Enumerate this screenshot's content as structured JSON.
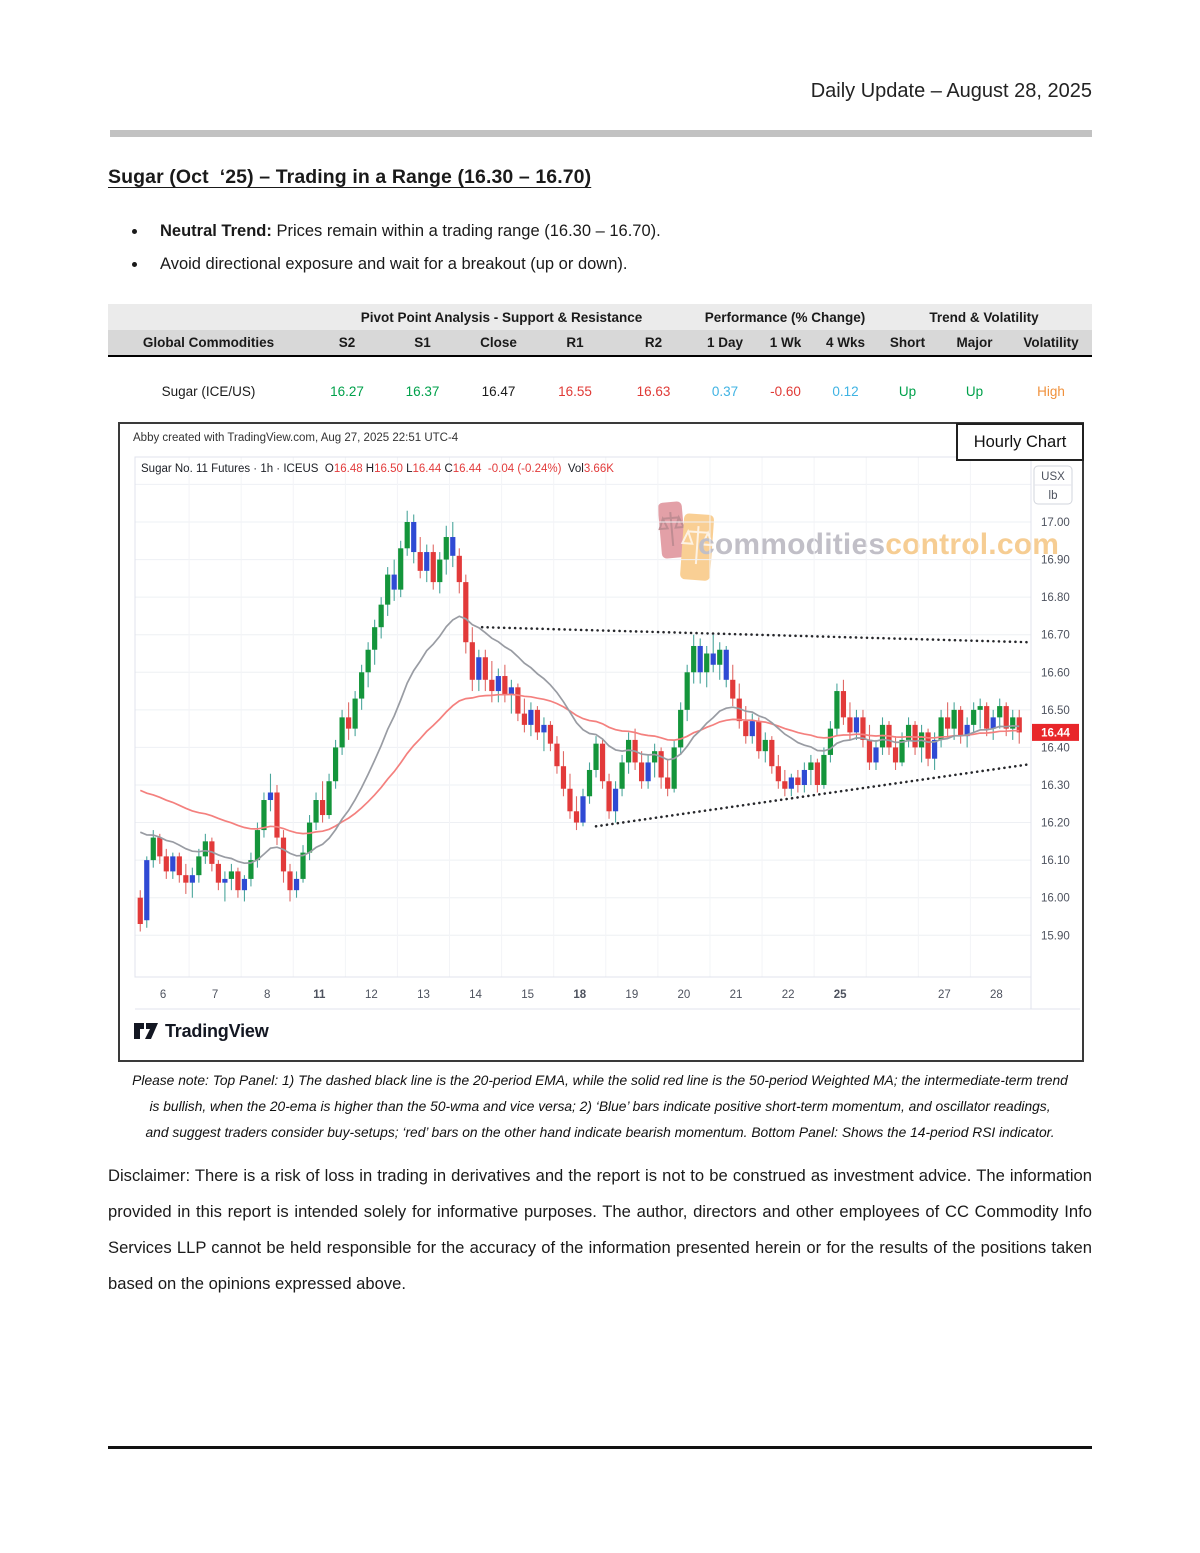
{
  "page": {
    "header_date": "Daily Update – August 28, 2025"
  },
  "section": {
    "title": "Sugar (Oct  ‘25) – Trading in a Range (16.30 – 16.70)",
    "bullets": [
      {
        "bold": "Neutral Trend:",
        "text": " Prices remain within a trading range (16.30 – 16.70)."
      },
      {
        "bold": "",
        "text": "Avoid directional exposure and wait for a breakout (up or down)."
      }
    ]
  },
  "table": {
    "groups": {
      "pivot": "Pivot Point Analysis - Support & Resistance",
      "perf": "Performance (% Change)",
      "trend": "Trend & Volatility"
    },
    "columns": [
      "Global Commodities",
      "S2",
      "S1",
      "Close",
      "R1",
      "R2",
      "1 Day",
      "1 Wk",
      "4 Wks",
      "Short",
      "Major",
      "Volatility"
    ],
    "row": {
      "cells": [
        {
          "v": "Sugar (ICE/US)",
          "color": "#1a1a1a",
          "align": "left"
        },
        {
          "v": "16.27",
          "color": "#00a14b"
        },
        {
          "v": "16.37",
          "color": "#00a14b"
        },
        {
          "v": "16.47",
          "color": "#1a1a1a"
        },
        {
          "v": "16.55",
          "color": "#e03a36"
        },
        {
          "v": "16.63",
          "color": "#e03a36"
        },
        {
          "v": "0.37",
          "color": "#3fb3e3"
        },
        {
          "v": "-0.60",
          "color": "#e03a36"
        },
        {
          "v": "0.12",
          "color": "#3fb3e3"
        },
        {
          "v": "Up",
          "color": "#00a14b"
        },
        {
          "v": "Up",
          "color": "#00a14b"
        },
        {
          "v": "High",
          "color": "#f0913c"
        }
      ]
    }
  },
  "chart": {
    "attribution": "Abby created with TradingView.com, Aug 27, 2025 22:51 UTC-4",
    "overlay_label": "Hourly Chart",
    "legend_parts": [
      [
        "Sugar No. 11 Futures · 1h · ICEUS",
        "d"
      ],
      [
        "  O",
        "d"
      ],
      [
        "16.48",
        "r"
      ],
      [
        " H",
        "d"
      ],
      [
        "16.50",
        "r"
      ],
      [
        " L",
        "d"
      ],
      [
        "16.44",
        "r"
      ],
      [
        " C",
        "d"
      ],
      [
        "16.44",
        "r"
      ],
      [
        "  -0.04 (-0.24%)",
        "r"
      ],
      [
        "  Vol",
        "d"
      ],
      [
        "3.66K",
        "r"
      ]
    ],
    "unit_top": "USX",
    "unit_bottom": "lb",
    "watermark_gray": "commodities",
    "watermark_orange": "control.com",
    "tv_logo_text": "TradingView"
  },
  "chart_data": {
    "type": "candlestick",
    "title": "Sugar No. 11 Futures · 1h · ICEUS",
    "ylim": [
      15.79,
      17.17
    ],
    "y_ticks": [
      "17.00",
      "16.90",
      "16.80",
      "16.70",
      "16.60",
      "16.50",
      "16.40",
      "16.30",
      "16.20",
      "16.10",
      "16.00",
      "15.90"
    ],
    "x_labels": [
      "6",
      "7",
      "8",
      "11",
      "12",
      "13",
      "14",
      "15",
      "18",
      "19",
      "20",
      "21",
      "22",
      "25",
      "",
      "27",
      "28"
    ],
    "bold_x_labels": [
      "11",
      "18",
      "25"
    ],
    "bars_per_day": 8,
    "last_price": "16.44",
    "ema20_seed": 16.2,
    "wma50_seed": 16.3,
    "trendlines": [
      {
        "i1": 52.5,
        "p1": 16.72,
        "i2": 136.5,
        "p2": 16.68
      },
      {
        "i1": 70.0,
        "p1": 16.19,
        "i2": 136.5,
        "p2": 16.355
      }
    ],
    "colors": {
      "up": "#14953b",
      "down": "#e23a3a",
      "momo": "#2f4ad4",
      "wick_up": "#4ba69c",
      "wick_down": "#e06a66",
      "ema20": "#999ca3",
      "wma50": "#f4807e",
      "trendline": "#26272b",
      "grid": "#eef0f4",
      "grid_v": "#f3f4f7",
      "pane_border": "#e0e3ec",
      "axis_text": "#4d525e",
      "badge_bg": "#e8262a",
      "badge_text": "#ffffff"
    },
    "candles": [
      [
        16.0,
        16.02,
        15.91,
        15.93,
        "r"
      ],
      [
        15.94,
        16.11,
        15.92,
        16.1,
        "b"
      ],
      [
        16.1,
        16.18,
        16.08,
        16.16,
        "g"
      ],
      [
        16.16,
        16.17,
        16.09,
        16.11,
        "r"
      ],
      [
        16.11,
        16.13,
        16.05,
        16.07,
        "r"
      ],
      [
        16.07,
        16.12,
        16.05,
        16.11,
        "b"
      ],
      [
        16.11,
        16.12,
        16.04,
        16.06,
        "r"
      ],
      [
        16.06,
        16.09,
        16.01,
        16.04,
        "r"
      ],
      [
        16.04,
        16.08,
        16.0,
        16.06,
        "b"
      ],
      [
        16.06,
        16.13,
        16.04,
        16.11,
        "g"
      ],
      [
        16.11,
        16.17,
        16.09,
        16.15,
        "g"
      ],
      [
        16.15,
        16.16,
        16.07,
        16.09,
        "r"
      ],
      [
        16.09,
        16.1,
        16.02,
        16.04,
        "r"
      ],
      [
        16.04,
        16.07,
        15.99,
        16.05,
        "b"
      ],
      [
        16.05,
        16.09,
        16.02,
        16.07,
        "g"
      ],
      [
        16.07,
        16.08,
        16.0,
        16.02,
        "r"
      ],
      [
        16.02,
        16.06,
        15.99,
        16.05,
        "b"
      ],
      [
        16.05,
        16.12,
        16.03,
        16.1,
        "g"
      ],
      [
        16.1,
        16.2,
        16.08,
        16.18,
        "g"
      ],
      [
        16.18,
        16.28,
        16.16,
        16.26,
        "g"
      ],
      [
        16.26,
        16.33,
        16.23,
        16.28,
        "b"
      ],
      [
        16.28,
        16.3,
        16.14,
        16.16,
        "r"
      ],
      [
        16.16,
        16.18,
        16.04,
        16.07,
        "r"
      ],
      [
        16.07,
        16.09,
        15.99,
        16.02,
        "r"
      ],
      [
        16.02,
        16.07,
        16.0,
        16.05,
        "b"
      ],
      [
        16.05,
        16.14,
        16.04,
        16.12,
        "g"
      ],
      [
        16.12,
        16.22,
        16.1,
        16.2,
        "g"
      ],
      [
        16.2,
        16.28,
        16.18,
        16.26,
        "g"
      ],
      [
        16.26,
        16.31,
        16.2,
        16.22,
        "r"
      ],
      [
        16.22,
        16.33,
        16.21,
        16.31,
        "g"
      ],
      [
        16.31,
        16.42,
        16.29,
        16.4,
        "g"
      ],
      [
        16.4,
        16.5,
        16.38,
        16.48,
        "g"
      ],
      [
        16.48,
        16.52,
        16.42,
        16.45,
        "r"
      ],
      [
        16.45,
        16.55,
        16.43,
        16.53,
        "g"
      ],
      [
        16.53,
        16.62,
        16.5,
        16.6,
        "g"
      ],
      [
        16.6,
        16.68,
        16.56,
        16.66,
        "g"
      ],
      [
        16.66,
        16.74,
        16.62,
        16.72,
        "g"
      ],
      [
        16.72,
        16.8,
        16.69,
        16.78,
        "g"
      ],
      [
        16.78,
        16.88,
        16.75,
        16.86,
        "g"
      ],
      [
        16.86,
        16.9,
        16.79,
        16.82,
        "b"
      ],
      [
        16.82,
        16.95,
        16.8,
        16.93,
        "g"
      ],
      [
        16.93,
        17.03,
        16.91,
        17.0,
        "g"
      ],
      [
        17.0,
        17.02,
        16.89,
        16.92,
        "b"
      ],
      [
        16.92,
        16.96,
        16.85,
        16.87,
        "r"
      ],
      [
        16.87,
        16.94,
        16.84,
        16.92,
        "b"
      ],
      [
        16.92,
        16.94,
        16.82,
        16.84,
        "r"
      ],
      [
        16.84,
        16.92,
        16.81,
        16.9,
        "g"
      ],
      [
        16.9,
        16.99,
        16.86,
        16.96,
        "g"
      ],
      [
        16.96,
        17.0,
        16.88,
        16.91,
        "b"
      ],
      [
        16.91,
        16.93,
        16.81,
        16.84,
        "r"
      ],
      [
        16.84,
        16.86,
        16.65,
        16.68,
        "r"
      ],
      [
        16.68,
        16.72,
        16.55,
        16.58,
        "r"
      ],
      [
        16.58,
        16.66,
        16.55,
        16.64,
        "b"
      ],
      [
        16.64,
        16.66,
        16.55,
        16.58,
        "r"
      ],
      [
        16.58,
        16.63,
        16.52,
        16.55,
        "r"
      ],
      [
        16.55,
        16.61,
        16.52,
        16.59,
        "b"
      ],
      [
        16.59,
        16.62,
        16.52,
        16.54,
        "r"
      ],
      [
        16.54,
        16.58,
        16.49,
        16.56,
        "b"
      ],
      [
        16.56,
        16.57,
        16.47,
        16.49,
        "r"
      ],
      [
        16.49,
        16.53,
        16.44,
        16.46,
        "r"
      ],
      [
        16.46,
        16.52,
        16.43,
        16.5,
        "b"
      ],
      [
        16.5,
        16.51,
        16.42,
        16.44,
        "r"
      ],
      [
        16.44,
        16.48,
        16.39,
        16.46,
        "b"
      ],
      [
        16.46,
        16.47,
        16.39,
        16.41,
        "r"
      ],
      [
        16.41,
        16.43,
        16.33,
        16.35,
        "r"
      ],
      [
        16.35,
        16.39,
        16.27,
        16.29,
        "r"
      ],
      [
        16.29,
        16.33,
        16.21,
        16.23,
        "r"
      ],
      [
        16.23,
        16.27,
        16.18,
        16.2,
        "r"
      ],
      [
        16.2,
        16.29,
        16.19,
        16.27,
        "b"
      ],
      [
        16.27,
        16.36,
        16.25,
        16.34,
        "g"
      ],
      [
        16.34,
        16.43,
        16.32,
        16.41,
        "g"
      ],
      [
        16.41,
        16.42,
        16.29,
        16.31,
        "r"
      ],
      [
        16.31,
        16.33,
        16.21,
        16.23,
        "r"
      ],
      [
        16.23,
        16.31,
        16.2,
        16.29,
        "b"
      ],
      [
        16.29,
        16.38,
        16.27,
        16.36,
        "g"
      ],
      [
        16.36,
        16.44,
        16.33,
        16.42,
        "g"
      ],
      [
        16.42,
        16.45,
        16.34,
        16.36,
        "r"
      ],
      [
        16.36,
        16.39,
        16.29,
        16.31,
        "r"
      ],
      [
        16.31,
        16.38,
        16.29,
        16.36,
        "b"
      ],
      [
        16.36,
        16.41,
        16.32,
        16.39,
        "g"
      ],
      [
        16.39,
        16.4,
        16.29,
        16.32,
        "r"
      ],
      [
        16.32,
        16.37,
        16.27,
        16.29,
        "r"
      ],
      [
        16.29,
        16.42,
        16.28,
        16.4,
        "g"
      ],
      [
        16.4,
        16.52,
        16.38,
        16.5,
        "g"
      ],
      [
        16.5,
        16.62,
        16.47,
        16.6,
        "g"
      ],
      [
        16.6,
        16.7,
        16.57,
        16.67,
        "g"
      ],
      [
        16.67,
        16.69,
        16.57,
        16.6,
        "b"
      ],
      [
        16.6,
        16.67,
        16.56,
        16.65,
        "g"
      ],
      [
        16.65,
        16.7,
        16.6,
        16.62,
        "b"
      ],
      [
        16.62,
        16.68,
        16.58,
        16.66,
        "g"
      ],
      [
        16.66,
        16.67,
        16.56,
        16.58,
        "b"
      ],
      [
        16.58,
        16.62,
        16.51,
        16.53,
        "r"
      ],
      [
        16.53,
        16.57,
        16.45,
        16.47,
        "r"
      ],
      [
        16.47,
        16.51,
        16.41,
        16.43,
        "r"
      ],
      [
        16.43,
        16.49,
        16.41,
        16.47,
        "b"
      ],
      [
        16.47,
        16.48,
        16.37,
        16.39,
        "r"
      ],
      [
        16.39,
        16.44,
        16.36,
        16.42,
        "g"
      ],
      [
        16.42,
        16.43,
        16.33,
        16.35,
        "r"
      ],
      [
        16.35,
        16.38,
        16.29,
        16.31,
        "r"
      ],
      [
        16.31,
        16.34,
        16.27,
        16.29,
        "r"
      ],
      [
        16.29,
        16.33,
        16.27,
        16.32,
        "b"
      ],
      [
        16.32,
        16.34,
        16.28,
        16.3,
        "r"
      ],
      [
        16.3,
        16.36,
        16.28,
        16.34,
        "b"
      ],
      [
        16.34,
        16.38,
        16.3,
        16.36,
        "g"
      ],
      [
        16.36,
        16.37,
        16.28,
        16.3,
        "r"
      ],
      [
        16.3,
        16.4,
        16.29,
        16.38,
        "g"
      ],
      [
        16.38,
        16.47,
        16.36,
        16.45,
        "g"
      ],
      [
        16.45,
        16.57,
        16.43,
        16.55,
        "g"
      ],
      [
        16.55,
        16.58,
        16.46,
        16.48,
        "r"
      ],
      [
        16.48,
        16.52,
        16.42,
        16.44,
        "r"
      ],
      [
        16.44,
        16.5,
        16.42,
        16.48,
        "b"
      ],
      [
        16.48,
        16.5,
        16.4,
        16.42,
        "r"
      ],
      [
        16.42,
        16.46,
        16.34,
        16.36,
        "r"
      ],
      [
        16.36,
        16.42,
        16.34,
        16.4,
        "b"
      ],
      [
        16.4,
        16.48,
        16.38,
        16.46,
        "g"
      ],
      [
        16.46,
        16.47,
        16.38,
        16.4,
        "r"
      ],
      [
        16.4,
        16.43,
        16.34,
        16.36,
        "r"
      ],
      [
        16.36,
        16.44,
        16.35,
        16.42,
        "g"
      ],
      [
        16.42,
        16.48,
        16.4,
        16.46,
        "g"
      ],
      [
        16.46,
        16.47,
        16.38,
        16.4,
        "r"
      ],
      [
        16.4,
        16.46,
        16.36,
        16.44,
        "g"
      ],
      [
        16.44,
        16.45,
        16.35,
        16.37,
        "r"
      ],
      [
        16.37,
        16.44,
        16.34,
        16.42,
        "b"
      ],
      [
        16.42,
        16.5,
        16.4,
        16.48,
        "g"
      ],
      [
        16.48,
        16.52,
        16.43,
        16.45,
        "r"
      ],
      [
        16.45,
        16.52,
        16.42,
        16.5,
        "g"
      ],
      [
        16.5,
        16.51,
        16.41,
        16.43,
        "r"
      ],
      [
        16.43,
        16.48,
        16.4,
        16.46,
        "b"
      ],
      [
        16.46,
        16.52,
        16.44,
        16.5,
        "g"
      ],
      [
        16.5,
        16.53,
        16.45,
        16.51,
        "g"
      ],
      [
        16.51,
        16.52,
        16.43,
        16.45,
        "r"
      ],
      [
        16.45,
        16.5,
        16.42,
        16.48,
        "b"
      ],
      [
        16.48,
        16.53,
        16.45,
        16.51,
        "g"
      ],
      [
        16.51,
        16.52,
        16.43,
        16.45,
        "r"
      ],
      [
        16.45,
        16.5,
        16.42,
        16.48,
        "g"
      ],
      [
        16.48,
        16.5,
        16.41,
        16.44,
        "r"
      ]
    ]
  },
  "note": {
    "lines": [
      "Please note: Top Panel: 1) The dashed black line is the 20-period EMA, while the solid red line is the 50-period Weighted MA; the intermediate-term trend",
      "is bullish, when the 20-ema is higher than the 50-wma and vice versa; 2) ‘Blue’ bars indicate positive short-term momentum, and oscillator readings,",
      "and suggest traders consider buy-setups; ‘red’ bars on the other hand indicate bearish momentum. Bottom Panel: Shows the 14-period RSI indicator."
    ]
  },
  "disclaimer": "Disclaimer: There is a risk of loss in trading in derivatives and the report is not to be construed as investment advice. The information provided in this report is intended solely for informative purposes. The author, directors and other employees of CC Commodity Info Services LLP cannot be held responsible for the accuracy of the information presented herein or for the results of the positions taken based on the opinions expressed above."
}
